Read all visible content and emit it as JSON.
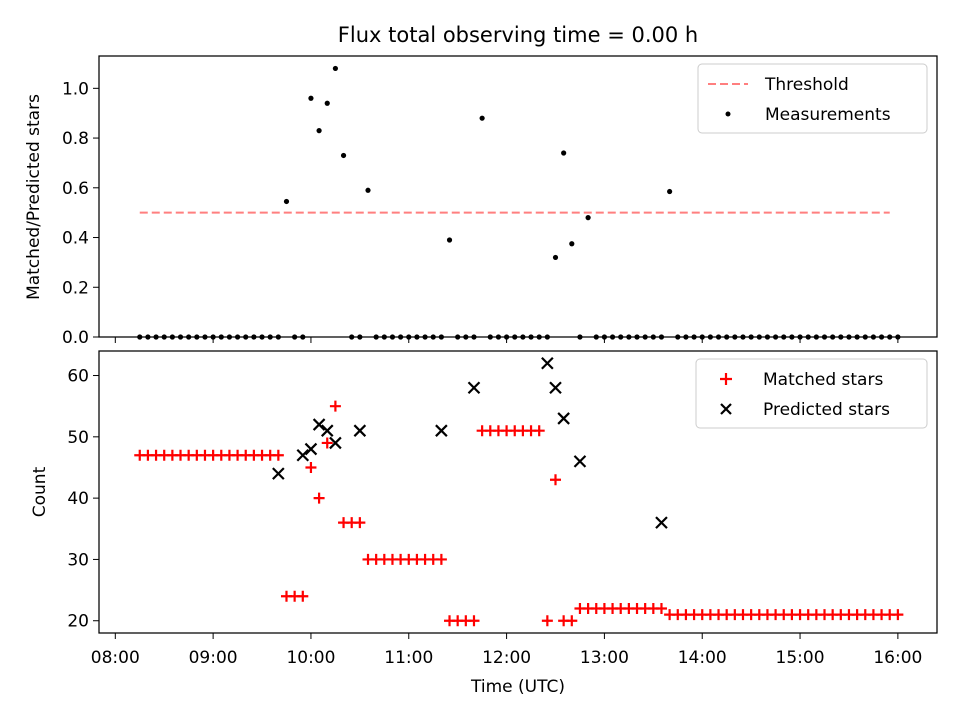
{
  "chart_data": [
    {
      "type": "scatter",
      "title": "Flux total observing time = 0.00 h",
      "xlabel": "",
      "ylabel": "Matched/Predicted stars",
      "ylim": [
        0,
        1.13
      ],
      "xlim": [
        "07:50",
        "16:24"
      ],
      "yticks": [
        "0.0",
        "0.2",
        "0.4",
        "0.6",
        "0.8",
        "1.0"
      ],
      "legend_position": "top-right",
      "threshold": {
        "name": "Threshold",
        "value": 0.5,
        "x_start": "08:15",
        "x_end": "15:55",
        "color": "#ff7f7f"
      },
      "series": [
        {
          "name": "Measurements",
          "color": "#000000",
          "x": [
            "08:15",
            "08:20",
            "08:25",
            "08:30",
            "08:35",
            "08:40",
            "08:45",
            "08:50",
            "08:55",
            "09:00",
            "09:05",
            "09:10",
            "09:15",
            "09:20",
            "09:25",
            "09:30",
            "09:35",
            "09:40",
            "09:45",
            "09:50",
            "09:55",
            "10:00",
            "10:05",
            "10:10",
            "10:15",
            "10:20",
            "10:25",
            "10:30",
            "10:35",
            "10:40",
            "10:45",
            "10:50",
            "10:55",
            "11:00",
            "11:05",
            "11:10",
            "11:15",
            "11:20",
            "11:25",
            "11:30",
            "11:35",
            "11:40",
            "11:45",
            "11:50",
            "11:55",
            "12:00",
            "12:05",
            "12:10",
            "12:15",
            "12:20",
            "12:25",
            "12:30",
            "12:35",
            "12:40",
            "12:45",
            "12:50",
            "12:55",
            "13:00",
            "13:05",
            "13:10",
            "13:15",
            "13:20",
            "13:25",
            "13:30",
            "13:35",
            "13:40",
            "13:45",
            "13:50",
            "13:55",
            "14:00",
            "14:05",
            "14:10",
            "14:15",
            "14:20",
            "14:25",
            "14:30",
            "14:35",
            "14:40",
            "14:45",
            "14:50",
            "14:55",
            "15:00",
            "15:05",
            "15:10",
            "15:15",
            "15:20",
            "15:25",
            "15:30",
            "15:35",
            "15:40",
            "15:45",
            "15:50",
            "15:55",
            "16:00"
          ],
          "y": [
            0,
            0,
            0,
            0,
            0,
            0,
            0,
            0,
            0,
            0,
            0,
            0,
            0,
            0,
            0,
            0,
            0,
            0,
            0.545,
            0,
            0,
            0.96,
            0.83,
            0.94,
            1.08,
            0.73,
            0,
            0,
            0.59,
            0,
            0,
            0,
            0,
            0,
            0,
            0,
            0,
            0,
            0.39,
            0,
            0,
            0,
            0.88,
            0,
            0,
            0,
            0,
            0,
            0,
            0,
            0,
            0.32,
            0.74,
            0.375,
            0,
            0.48,
            0,
            0,
            0,
            0,
            0,
            0,
            0,
            0,
            0,
            0.585,
            0,
            0,
            0,
            0,
            0,
            0,
            0,
            0,
            0,
            0,
            0,
            0,
            0,
            0,
            0,
            0,
            0,
            0,
            0,
            0,
            0,
            0,
            0,
            0,
            0,
            0,
            0,
            0
          ]
        }
      ]
    },
    {
      "type": "scatter",
      "title": "",
      "xlabel": "Time (UTC)",
      "ylabel": "Count",
      "ylim": [
        18,
        64
      ],
      "xlim": [
        "07:50",
        "16:24"
      ],
      "yticks": [
        "20",
        "30",
        "40",
        "50",
        "60"
      ],
      "xticks": [
        "08:00",
        "09:00",
        "10:00",
        "11:00",
        "12:00",
        "13:00",
        "14:00",
        "15:00",
        "16:00"
      ],
      "legend_position": "top-right",
      "series": [
        {
          "name": "Matched stars",
          "color": "#ff0000",
          "marker": "plus",
          "x": [
            "08:15",
            "08:20",
            "08:25",
            "08:30",
            "08:35",
            "08:40",
            "08:45",
            "08:50",
            "08:55",
            "09:00",
            "09:05",
            "09:10",
            "09:15",
            "09:20",
            "09:25",
            "09:30",
            "09:35",
            "09:40",
            "09:45",
            "09:50",
            "09:55",
            "10:00",
            "10:05",
            "10:10",
            "10:15",
            "10:20",
            "10:25",
            "10:30",
            "10:35",
            "10:40",
            "10:45",
            "10:50",
            "10:55",
            "11:00",
            "11:05",
            "11:10",
            "11:15",
            "11:20",
            "11:25",
            "11:30",
            "11:35",
            "11:40",
            "11:45",
            "11:50",
            "11:55",
            "12:00",
            "12:05",
            "12:10",
            "12:15",
            "12:20",
            "12:25",
            "12:30",
            "12:35",
            "12:40",
            "12:45",
            "12:50",
            "12:55",
            "13:00",
            "13:05",
            "13:10",
            "13:15",
            "13:20",
            "13:25",
            "13:30",
            "13:35",
            "13:40",
            "13:45",
            "13:50",
            "13:55",
            "14:00",
            "14:05",
            "14:10",
            "14:15",
            "14:20",
            "14:25",
            "14:30",
            "14:35",
            "14:40",
            "14:45",
            "14:50",
            "14:55",
            "15:00",
            "15:05",
            "15:10",
            "15:15",
            "15:20",
            "15:25",
            "15:30",
            "15:35",
            "15:40",
            "15:45",
            "15:50",
            "15:55",
            "16:00"
          ],
          "y": [
            47,
            47,
            47,
            47,
            47,
            47,
            47,
            47,
            47,
            47,
            47,
            47,
            47,
            47,
            47,
            47,
            47,
            47,
            24,
            24,
            24,
            45,
            40,
            49,
            55,
            36,
            36,
            36,
            30,
            30,
            30,
            30,
            30,
            30,
            30,
            30,
            30,
            30,
            20,
            20,
            20,
            20,
            51,
            51,
            51,
            51,
            51,
            51,
            51,
            51,
            20,
            43,
            20,
            20,
            22,
            22,
            22,
            22,
            22,
            22,
            22,
            22,
            22,
            22,
            22,
            21,
            21,
            21,
            21,
            21,
            21,
            21,
            21,
            21,
            21,
            21,
            21,
            21,
            21,
            21,
            21,
            21,
            21,
            21,
            21,
            21,
            21,
            21,
            21,
            21,
            21,
            21,
            21,
            21
          ]
        },
        {
          "name": "Predicted stars",
          "color": "#000000",
          "marker": "x",
          "x": [
            "09:40",
            "09:55",
            "10:00",
            "10:05",
            "10:10",
            "10:15",
            "10:30",
            "11:20",
            "11:40",
            "12:25",
            "12:30",
            "12:35",
            "12:45",
            "13:35"
          ],
          "y": [
            44,
            47,
            48,
            52,
            51,
            49,
            51,
            51,
            58,
            62,
            58,
            53,
            46,
            36
          ]
        }
      ]
    }
  ]
}
